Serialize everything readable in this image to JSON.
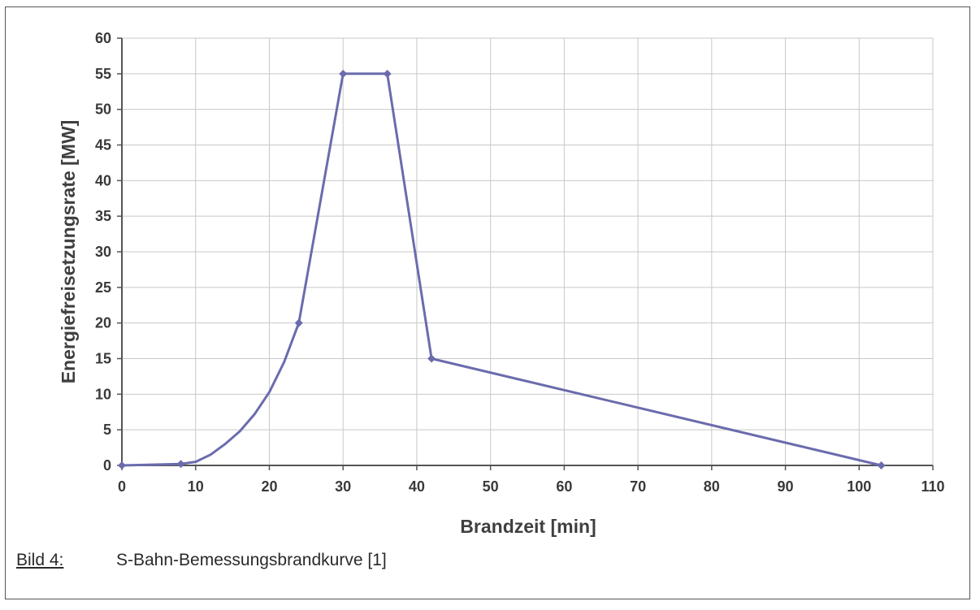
{
  "caption": {
    "label": "Bild 4:",
    "text": "S-Bahn-Bemessungsbrandkurve [1]"
  },
  "chart_data": {
    "type": "line",
    "title": "",
    "xlabel": "Brandzeit [min]",
    "ylabel": "Energiefreisetzungsrate [MW]",
    "xlim": [
      0,
      110
    ],
    "ylim": [
      0,
      60
    ],
    "x_ticks": [
      0,
      10,
      20,
      30,
      40,
      50,
      60,
      70,
      80,
      90,
      100,
      110
    ],
    "y_ticks": [
      0,
      5,
      10,
      15,
      20,
      25,
      30,
      35,
      40,
      45,
      50,
      55,
      60
    ],
    "grid": true,
    "legend": "none",
    "series": [
      {
        "markers": [
          [
            0,
            0
          ],
          [
            8,
            0.2
          ],
          [
            24,
            20
          ],
          [
            30,
            55
          ],
          [
            36,
            55
          ],
          [
            42,
            15
          ],
          [
            103,
            0
          ]
        ],
        "curve": [
          [
            8,
            0.2
          ],
          [
            10,
            0.5
          ],
          [
            12,
            1.5
          ],
          [
            14,
            3
          ],
          [
            16,
            4.8
          ],
          [
            18,
            7.2
          ],
          [
            20,
            10.3
          ],
          [
            22,
            14.5
          ],
          [
            24,
            20
          ]
        ]
      }
    ],
    "colors": {
      "line": "#6b6bad",
      "marker": "#6b6bad",
      "grid": "#c8c8c8",
      "axis": "#555555"
    }
  }
}
